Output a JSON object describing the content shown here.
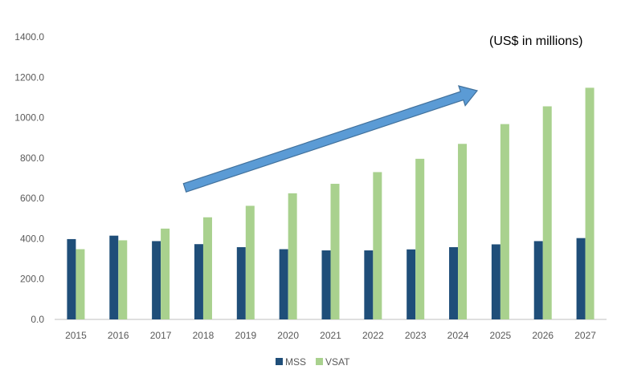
{
  "chart_data": {
    "type": "bar",
    "title": "",
    "xlabel": "",
    "ylabel": "",
    "annotation": "(US$ in millions)",
    "categories": [
      "2015",
      "2016",
      "2017",
      "2018",
      "2019",
      "2020",
      "2021",
      "2022",
      "2023",
      "2024",
      "2025",
      "2026",
      "2027"
    ],
    "series": [
      {
        "name": "MSS",
        "color": "#1f4e79",
        "values": [
          398,
          415,
          388,
          373,
          358,
          348,
          342,
          342,
          347,
          358,
          372,
          388,
          403
        ]
      },
      {
        "name": "VSAT",
        "color": "#a9d18e",
        "values": [
          348,
          392,
          450,
          506,
          563,
          625,
          672,
          730,
          796,
          870,
          968,
          1056,
          1148
        ]
      }
    ],
    "ylim": [
      0,
      1400
    ],
    "yticks": [
      "0.0",
      "200.0",
      "400.0",
      "600.0",
      "800.0",
      "1000.0",
      "1200.0",
      "1400.0"
    ],
    "grid": false,
    "legend": "bottom-center",
    "trend_arrow": {
      "color": "#5b9bd5",
      "direction": "up-right"
    }
  }
}
